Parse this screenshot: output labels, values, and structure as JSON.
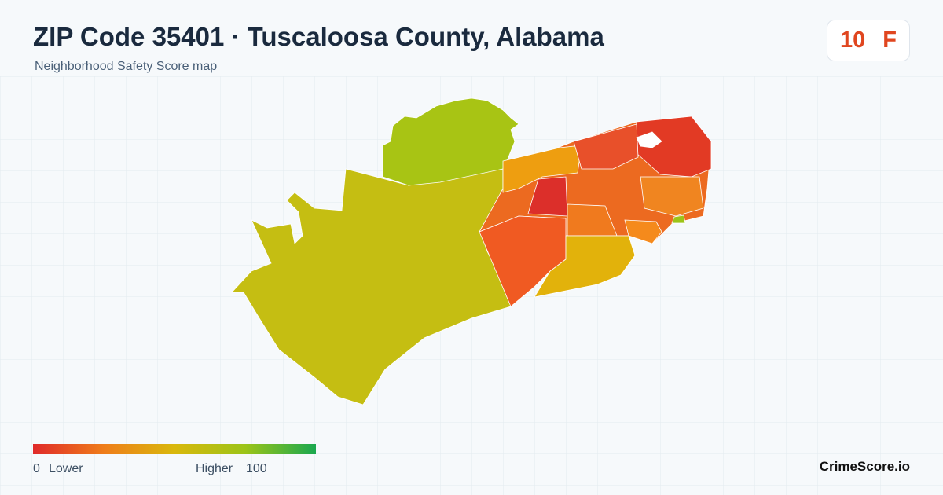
{
  "header": {
    "title": "ZIP Code 35401 · Tuscaloosa County, Alabama",
    "subtitle": "Neighborhood Safety Score map"
  },
  "score": {
    "value": 10,
    "grade": "F"
  },
  "legend": {
    "min": 0,
    "min_label": "Lower",
    "max_label": "Higher",
    "max": 100
  },
  "brand": "CrimeScore.io"
}
